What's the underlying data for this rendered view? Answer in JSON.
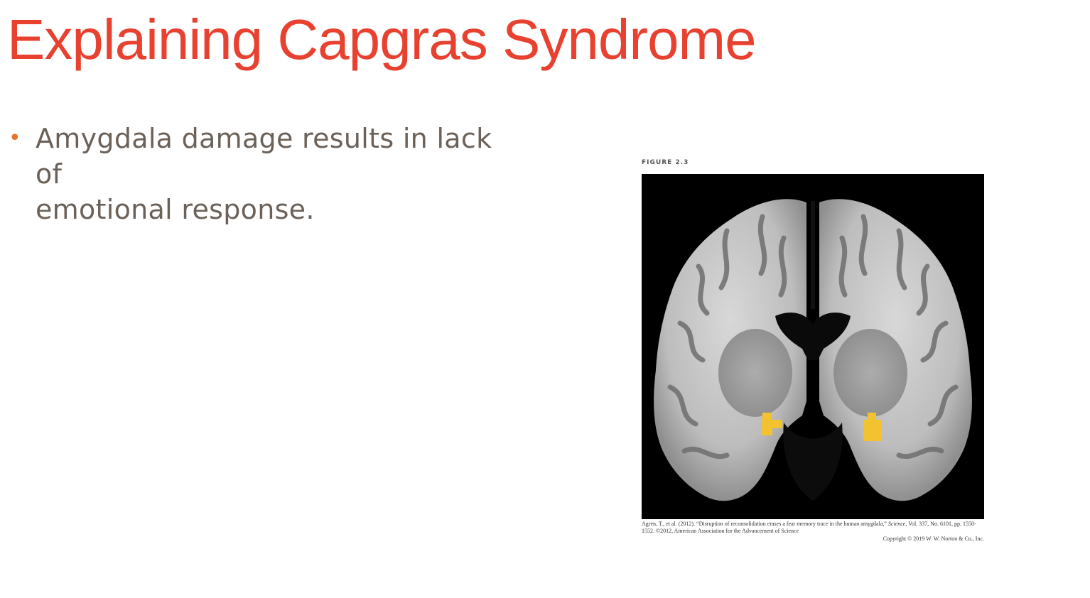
{
  "slide": {
    "title": "Explaining Capgras Syndrome",
    "bullets": [
      {
        "marker": "•",
        "line1": "Amygdala damage results in lack of",
        "line2": "emotional response."
      }
    ]
  },
  "figure": {
    "label": "FIGURE 2.3",
    "image_description": "Coronal MRI slice of the human brain with yellow highlighted regions in both amygdalae",
    "caption_part1": "Agren, T., et al. (2012). “Disruption of reconsolidation erases a fear memory trace in the human amygdala,” ",
    "caption_journal": "Science",
    "caption_part2": ", Vol. 337, No. 6101, pp. 1550-1552. ©2012, American Association for the Advancement of Science",
    "copyright": "Copyright © 2019 W. W. Norton & Co., Inc."
  },
  "colors": {
    "title": "#e8412f",
    "bullet_marker": "#e8732f",
    "body_text": "#6b6158",
    "highlight": "#f2c230"
  }
}
